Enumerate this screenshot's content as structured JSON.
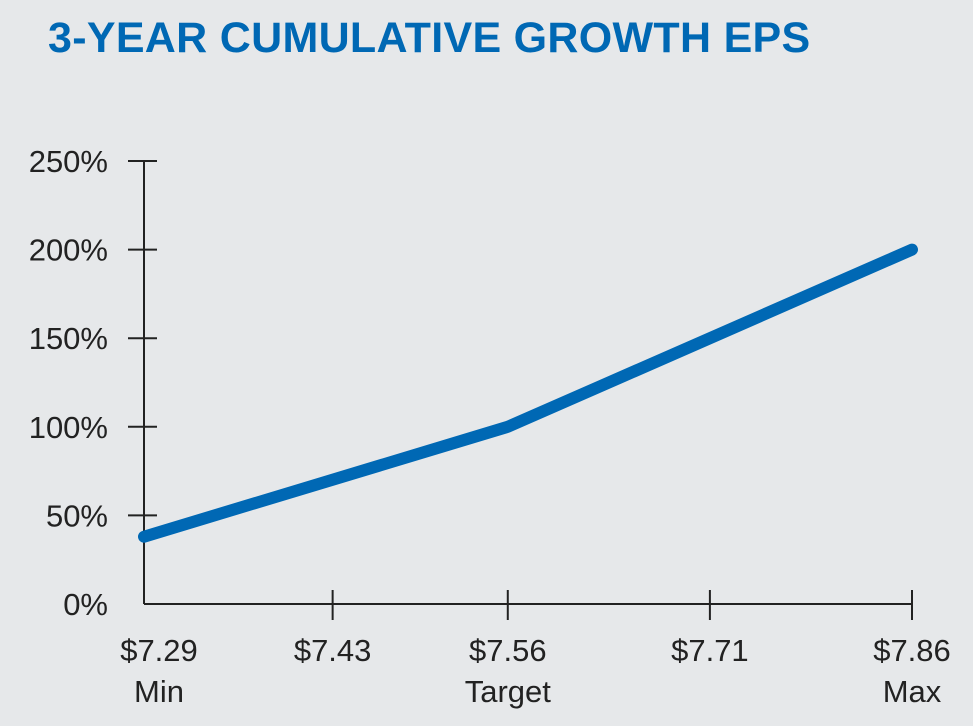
{
  "chart_data": {
    "type": "line",
    "title": "3-YEAR CUMULATIVE GROWTH EPS",
    "xlabel": "",
    "ylabel": "",
    "categories": [
      "$7.29",
      "$7.43",
      "$7.56",
      "$7.71",
      "$7.86"
    ],
    "category_sublabels": [
      "Min",
      "",
      "Target",
      "",
      "Max"
    ],
    "x": [
      7.29,
      7.43,
      7.56,
      7.71,
      7.86
    ],
    "xlim": [
      7.29,
      7.86
    ],
    "ylim": [
      0,
      250
    ],
    "yticks": [
      0,
      50,
      100,
      150,
      200,
      250
    ],
    "ytick_labels": [
      "0%",
      "50%",
      "100%",
      "150%",
      "200%",
      "250%"
    ],
    "series": [
      {
        "name": "3-Year Cumulative Growth",
        "x": [
          7.29,
          7.56,
          7.86
        ],
        "values": [
          38,
          100,
          200
        ]
      }
    ],
    "grid": false,
    "line_color": "#0068b4",
    "axis_color": "#222222"
  }
}
